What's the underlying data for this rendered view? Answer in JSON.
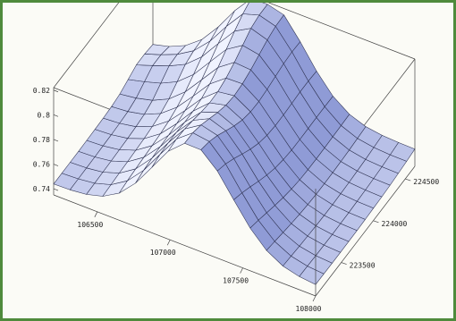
{
  "chart_data": {
    "type": "surface",
    "title": "",
    "xlabel": "",
    "ylabel": "",
    "zlabel": "",
    "x_ticks": [
      "106500",
      "107000",
      "107500",
      "108000"
    ],
    "y_ticks": [
      "223500",
      "224000",
      "224500"
    ],
    "z_ticks": [
      "0.74",
      "0.76",
      "0.78",
      "0.8",
      "0.82"
    ],
    "xlim": [
      106200,
      108000
    ],
    "ylim": [
      223100,
      224650
    ],
    "zlim": [
      0.735,
      0.822
    ],
    "grid": false,
    "box": true,
    "surface_color": "#a9b5e2",
    "edge_color": "#2d3150"
  }
}
